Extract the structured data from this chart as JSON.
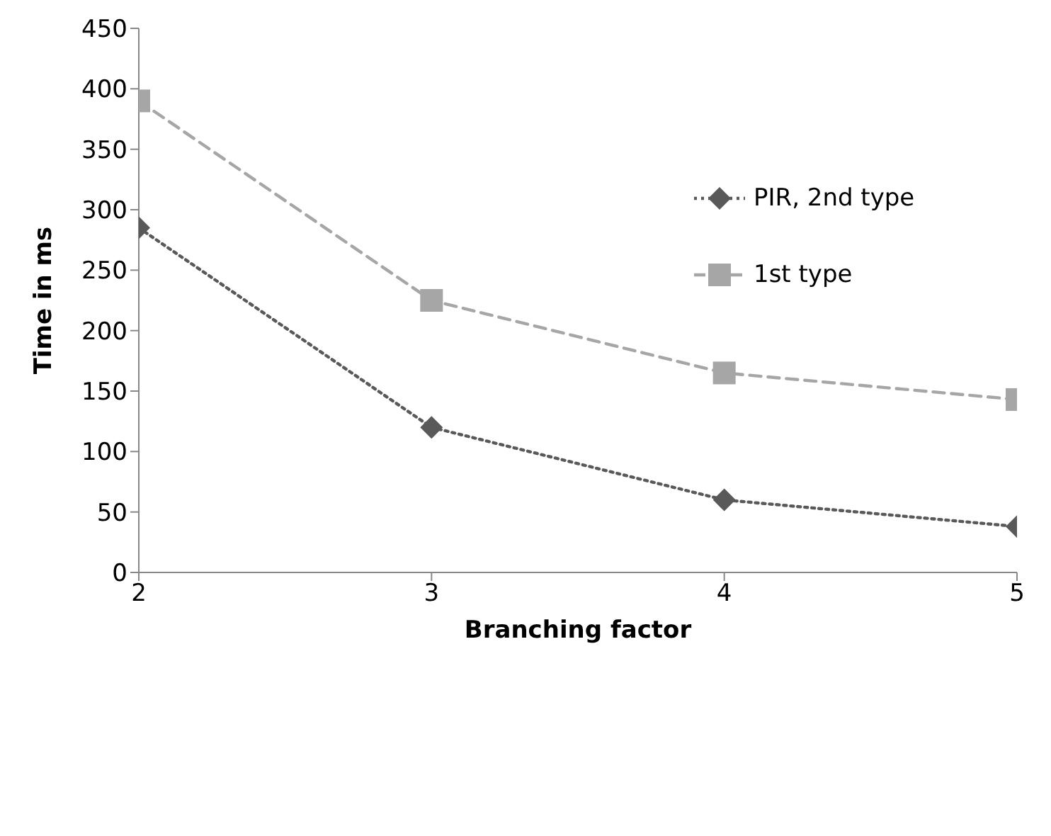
{
  "chart_data": {
    "type": "line",
    "xlabel": "Branching factor",
    "ylabel": "Time in ms",
    "x": [
      2,
      3,
      4,
      5
    ],
    "xlim": [
      2,
      5
    ],
    "xticks": [
      2,
      3,
      4,
      5
    ],
    "ylim": [
      0,
      450
    ],
    "yticks": [
      0,
      50,
      100,
      150,
      200,
      250,
      300,
      350,
      400,
      450
    ],
    "grid": false,
    "legend": "right",
    "series": [
      {
        "name": "PIR, 2nd type",
        "color": "#595959",
        "values": [
          285,
          120,
          60,
          38
        ],
        "marker": "diamond",
        "line_style": "dotted"
      },
      {
        "name": "1st type",
        "color": "#a6a6a6",
        "values": [
          390,
          225,
          165,
          143
        ],
        "marker": "square",
        "line_style": "dashed"
      }
    ]
  }
}
